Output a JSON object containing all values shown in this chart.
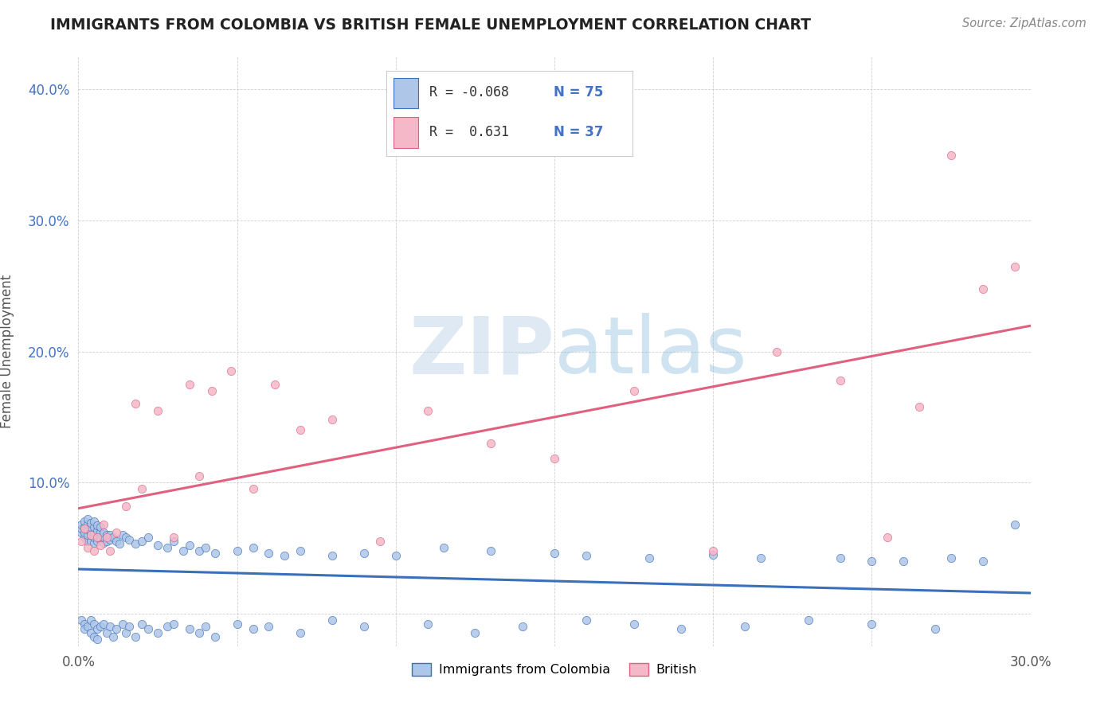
{
  "title": "IMMIGRANTS FROM COLOMBIA VS BRITISH FEMALE UNEMPLOYMENT CORRELATION CHART",
  "source": "Source: ZipAtlas.com",
  "ylabel": "Female Unemployment",
  "xlim": [
    0.0,
    0.3
  ],
  "ylim": [
    -0.025,
    0.425
  ],
  "yticks": [
    0.0,
    0.1,
    0.2,
    0.3,
    0.4
  ],
  "xticks": [
    0.0,
    0.05,
    0.1,
    0.15,
    0.2,
    0.25,
    0.3
  ],
  "xtick_labels": [
    "0.0%",
    "",
    "",
    "",
    "",
    "",
    "30.0%"
  ],
  "ytick_labels": [
    "",
    "10.0%",
    "20.0%",
    "30.0%",
    "40.0%"
  ],
  "colombia_color": "#aec6e8",
  "british_color": "#f4b8c8",
  "colombia_line_color": "#3a6fba",
  "british_line_color": "#e06080",
  "watermark_zip": "ZIP",
  "watermark_atlas": "atlas",
  "colombia_scatter_x": [
    0.001,
    0.001,
    0.001,
    0.002,
    0.002,
    0.002,
    0.002,
    0.003,
    0.003,
    0.003,
    0.003,
    0.003,
    0.004,
    0.004,
    0.004,
    0.004,
    0.004,
    0.005,
    0.005,
    0.005,
    0.005,
    0.005,
    0.006,
    0.006,
    0.006,
    0.006,
    0.007,
    0.007,
    0.007,
    0.007,
    0.008,
    0.008,
    0.008,
    0.009,
    0.009,
    0.01,
    0.01,
    0.011,
    0.012,
    0.013,
    0.014,
    0.015,
    0.016,
    0.018,
    0.02,
    0.022,
    0.025,
    0.028,
    0.03,
    0.033,
    0.035,
    0.038,
    0.04,
    0.043,
    0.05,
    0.055,
    0.06,
    0.065,
    0.07,
    0.08,
    0.09,
    0.1,
    0.115,
    0.13,
    0.15,
    0.16,
    0.18,
    0.2,
    0.215,
    0.24,
    0.25,
    0.26,
    0.275,
    0.285,
    0.295
  ],
  "colombia_scatter_y": [
    0.062,
    0.065,
    0.068,
    0.058,
    0.062,
    0.066,
    0.07,
    0.055,
    0.06,
    0.064,
    0.068,
    0.072,
    0.055,
    0.06,
    0.063,
    0.066,
    0.069,
    0.054,
    0.058,
    0.062,
    0.066,
    0.07,
    0.055,
    0.059,
    0.063,
    0.067,
    0.056,
    0.058,
    0.062,
    0.066,
    0.054,
    0.058,
    0.062,
    0.055,
    0.06,
    0.056,
    0.06,
    0.058,
    0.055,
    0.053,
    0.06,
    0.058,
    0.056,
    0.053,
    0.055,
    0.058,
    0.052,
    0.05,
    0.055,
    0.048,
    0.052,
    0.048,
    0.05,
    0.046,
    0.048,
    0.05,
    0.046,
    0.044,
    0.048,
    0.044,
    0.046,
    0.044,
    0.05,
    0.048,
    0.046,
    0.044,
    0.042,
    0.045,
    0.042,
    0.042,
    0.04,
    0.04,
    0.042,
    0.04,
    0.068
  ],
  "colombia_below_x": [
    0.001,
    0.002,
    0.002,
    0.003,
    0.004,
    0.004,
    0.005,
    0.005,
    0.006,
    0.006,
    0.007,
    0.008,
    0.009,
    0.01,
    0.011,
    0.012,
    0.014,
    0.015,
    0.016,
    0.018,
    0.02,
    0.022,
    0.025,
    0.028,
    0.03,
    0.035,
    0.038,
    0.04,
    0.043,
    0.05,
    0.055,
    0.06,
    0.07,
    0.08,
    0.09,
    0.11,
    0.125,
    0.14,
    0.16,
    0.175,
    0.19,
    0.21,
    0.23,
    0.25,
    0.27
  ],
  "colombia_below_y": [
    -0.005,
    -0.008,
    -0.012,
    -0.01,
    -0.005,
    -0.015,
    -0.008,
    -0.018,
    -0.012,
    -0.02,
    -0.01,
    -0.008,
    -0.015,
    -0.01,
    -0.018,
    -0.012,
    -0.008,
    -0.015,
    -0.01,
    -0.018,
    -0.008,
    -0.012,
    -0.015,
    -0.01,
    -0.008,
    -0.012,
    -0.015,
    -0.01,
    -0.018,
    -0.008,
    -0.012,
    -0.01,
    -0.015,
    -0.005,
    -0.01,
    -0.008,
    -0.015,
    -0.01,
    -0.005,
    -0.008,
    -0.012,
    -0.01,
    -0.005,
    -0.008,
    -0.012
  ],
  "british_scatter_x": [
    0.001,
    0.002,
    0.003,
    0.004,
    0.005,
    0.006,
    0.007,
    0.008,
    0.009,
    0.01,
    0.012,
    0.015,
    0.018,
    0.02,
    0.025,
    0.03,
    0.035,
    0.038,
    0.042,
    0.048,
    0.055,
    0.062,
    0.07,
    0.08,
    0.095,
    0.11,
    0.13,
    0.15,
    0.175,
    0.2,
    0.22,
    0.24,
    0.255,
    0.265,
    0.275,
    0.285,
    0.295
  ],
  "british_scatter_y": [
    0.055,
    0.065,
    0.05,
    0.06,
    0.048,
    0.058,
    0.052,
    0.068,
    0.058,
    0.048,
    0.062,
    0.082,
    0.16,
    0.095,
    0.155,
    0.058,
    0.175,
    0.105,
    0.17,
    0.185,
    0.095,
    0.175,
    0.14,
    0.148,
    0.055,
    0.155,
    0.13,
    0.118,
    0.17,
    0.048,
    0.2,
    0.178,
    0.058,
    0.158,
    0.35,
    0.248,
    0.265
  ]
}
